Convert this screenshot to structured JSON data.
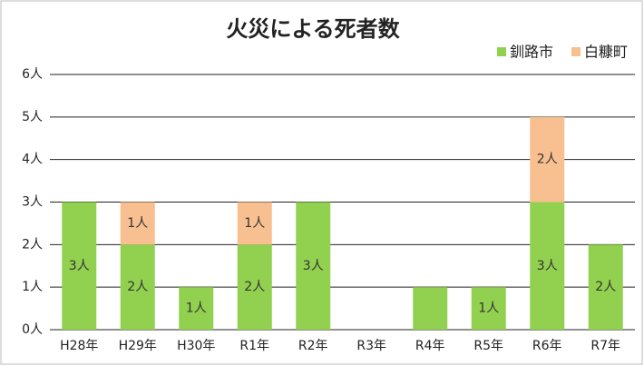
{
  "chart_data": {
    "type": "bar",
    "stacked": true,
    "title": "火災による死者数",
    "categories": [
      "H28年",
      "H29年",
      "H30年",
      "R1年",
      "R2年",
      "R3年",
      "R4年",
      "R5年",
      "R6年",
      "R7年"
    ],
    "series": [
      {
        "name": "釧路市",
        "color": "#92d050",
        "values": [
          3,
          2,
          1,
          2,
          3,
          0,
          1,
          1,
          3,
          2
        ],
        "value_labels": [
          "3人",
          "2人",
          "1人",
          "2人",
          "3人",
          null,
          null,
          "1人",
          "3人",
          "2人"
        ]
      },
      {
        "name": "白糠町",
        "color": "#f8c090",
        "values": [
          0,
          1,
          0,
          1,
          0,
          0,
          0,
          0,
          2,
          0
        ],
        "value_labels": [
          null,
          "1人",
          null,
          "1人",
          null,
          null,
          null,
          null,
          "2人",
          null
        ]
      }
    ],
    "ylim": [
      0,
      6
    ],
    "yticks": [
      {
        "value": 0,
        "label": "0人"
      },
      {
        "value": 1,
        "label": "1人"
      },
      {
        "value": 2,
        "label": "2人"
      },
      {
        "value": 3,
        "label": "3人"
      },
      {
        "value": 4,
        "label": "4人"
      },
      {
        "value": 5,
        "label": "5人"
      },
      {
        "value": 6,
        "label": "6人"
      }
    ],
    "grid": true,
    "legend": "top-right"
  }
}
